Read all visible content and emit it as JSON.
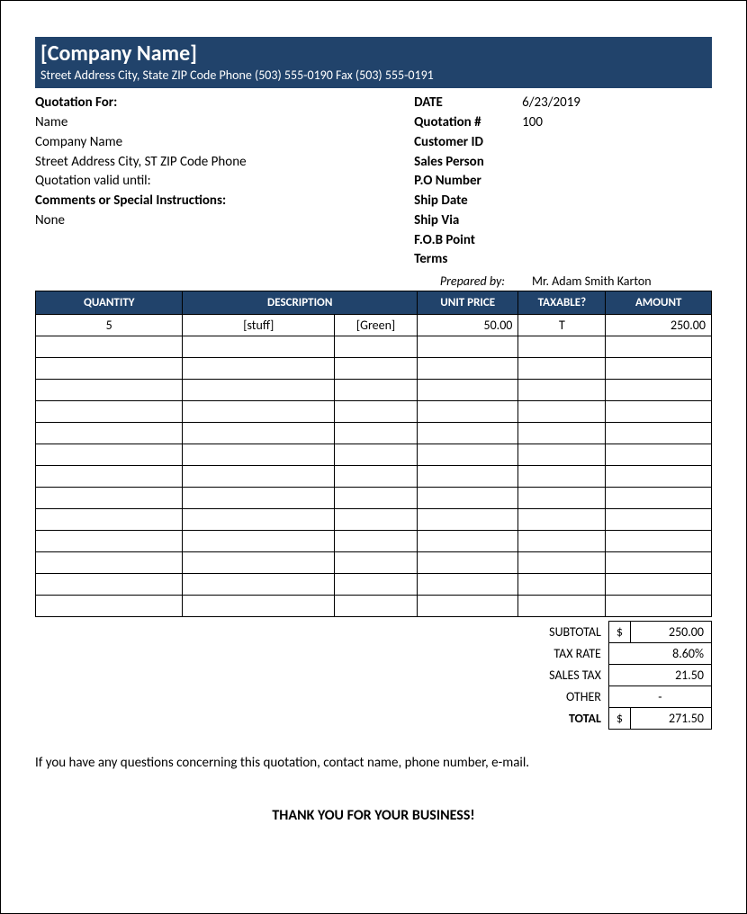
{
  "colors": {
    "brand": "#21436b",
    "text": "#000000",
    "background": "#ffffff",
    "border": "#000000"
  },
  "header": {
    "company_name": "[Company Name]",
    "address_line": "Street Address City, State ZIP Code Phone (503) 555-0190   Fax (503) 555-0191"
  },
  "quote_for": {
    "heading": "Quotation For:",
    "name": "Name",
    "company": "Company Name",
    "address": "Street Address City, ST  ZIP Code Phone",
    "valid_until_label": "Quotation valid until:",
    "comments_heading": "Comments or Special Instructions:",
    "comments": "None"
  },
  "meta": {
    "rows": [
      {
        "label": "DATE",
        "value": "6/23/2019"
      },
      {
        "label": "Quotation #",
        "value": "100"
      },
      {
        "label": "Customer ID",
        "value": ""
      },
      {
        "label": "Sales Person",
        "value": ""
      },
      {
        "label": "P.O Number",
        "value": ""
      },
      {
        "label": "Ship Date",
        "value": ""
      },
      {
        "label": "Ship Via",
        "value": ""
      },
      {
        "label": "F.O.B Point",
        "value": ""
      },
      {
        "label": "Terms",
        "value": ""
      }
    ],
    "prepared_label": "Prepared by:",
    "prepared_by": "Mr. Adam Smith Karton"
  },
  "table": {
    "headers": {
      "quantity": "QUANTITY",
      "description": "DESCRIPTION",
      "unit_price": "UNIT PRICE",
      "taxable": "TAXABLE?",
      "amount": "AMOUNT"
    },
    "rows": [
      {
        "qty": "5",
        "desc1": "[stuff]",
        "desc2": "[Green]",
        "price": "50.00",
        "tax": "T",
        "amount": "250.00"
      },
      {
        "qty": "",
        "desc1": "",
        "desc2": "",
        "price": "",
        "tax": "",
        "amount": ""
      },
      {
        "qty": "",
        "desc1": "",
        "desc2": "",
        "price": "",
        "tax": "",
        "amount": ""
      },
      {
        "qty": "",
        "desc1": "",
        "desc2": "",
        "price": "",
        "tax": "",
        "amount": ""
      },
      {
        "qty": "",
        "desc1": "",
        "desc2": "",
        "price": "",
        "tax": "",
        "amount": ""
      },
      {
        "qty": "",
        "desc1": "",
        "desc2": "",
        "price": "",
        "tax": "",
        "amount": ""
      },
      {
        "qty": "",
        "desc1": "",
        "desc2": "",
        "price": "",
        "tax": "",
        "amount": ""
      },
      {
        "qty": "",
        "desc1": "",
        "desc2": "",
        "price": "",
        "tax": "",
        "amount": ""
      },
      {
        "qty": "",
        "desc1": "",
        "desc2": "",
        "price": "",
        "tax": "",
        "amount": ""
      },
      {
        "qty": "",
        "desc1": "",
        "desc2": "",
        "price": "",
        "tax": "",
        "amount": ""
      },
      {
        "qty": "",
        "desc1": "",
        "desc2": "",
        "price": "",
        "tax": "",
        "amount": ""
      },
      {
        "qty": "",
        "desc1": "",
        "desc2": "",
        "price": "",
        "tax": "",
        "amount": ""
      },
      {
        "qty": "",
        "desc1": "",
        "desc2": "",
        "price": "",
        "tax": "",
        "amount": ""
      },
      {
        "qty": "",
        "desc1": "",
        "desc2": "",
        "price": "",
        "tax": "",
        "amount": ""
      }
    ]
  },
  "totals": {
    "subtotal_label": "SUBTOTAL",
    "subtotal_currency": "$",
    "subtotal": "250.00",
    "taxrate_label": "TAX RATE",
    "taxrate": "8.60%",
    "salestax_label": "SALES TAX",
    "salestax": "21.50",
    "other_label": "OTHER",
    "other": "-",
    "total_label": "TOTAL",
    "total_currency": "$",
    "total": "271.50"
  },
  "footer": {
    "note": "If you have any questions concerning this quotation, contact name, phone number, e-mail.",
    "thanks": "THANK YOU FOR YOUR BUSINESS!"
  }
}
